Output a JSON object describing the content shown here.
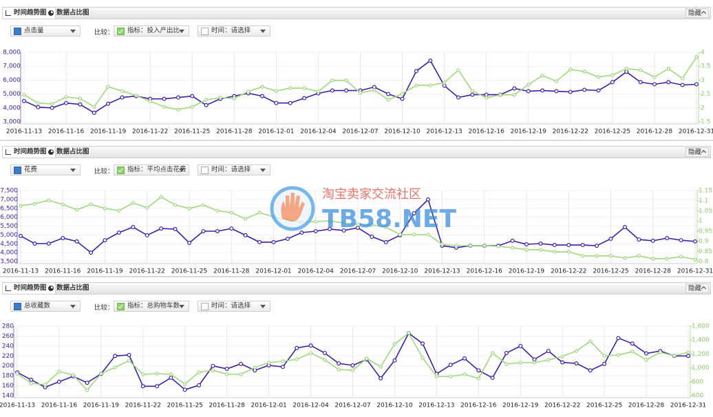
{
  "panels": [
    {
      "tabs": [
        "时间趋势图",
        "数据占比图"
      ],
      "hide": "隐藏",
      "metric": "点击量",
      "compare": "比较：",
      "compare_metric": "指标：投入产出比",
      "time_filter": "时间：请选择"
    },
    {
      "tabs": [
        "时间趋势图",
        "数据占比图"
      ],
      "hide": "隐藏",
      "metric": "花费",
      "compare": "比较：",
      "compare_metric": "指标：平均点击花费",
      "time_filter": "时间：请选择"
    },
    {
      "tabs": [
        "时间趋势图",
        "数据占比图"
      ],
      "hide": "隐藏",
      "metric": "总收藏数",
      "compare": "比较：",
      "compare_metric": "指标：总购物车数",
      "time_filter": "时间：请选择"
    }
  ],
  "watermark": {
    "text": "淘宝卖家交流社区",
    "site": "TB58.NET"
  },
  "chart_data": [
    {
      "type": "line",
      "grid": true,
      "categories": [
        "2016-11-13",
        null,
        null,
        "2016-11-16",
        null,
        null,
        "2016-11-19",
        null,
        null,
        "2016-11-22",
        null,
        null,
        "2016-11-25",
        null,
        null,
        "2016-11-28",
        null,
        null,
        "2016-12-01",
        null,
        null,
        "2016-12-04",
        null,
        null,
        "2016-12-07",
        null,
        null,
        "2016-12-10",
        null,
        null,
        "2016-12-13",
        null,
        null,
        "2016-12-16",
        null,
        null,
        "2016-12-19",
        null,
        null,
        "2016-12-22",
        null,
        null,
        "2016-12-25",
        null,
        null,
        "2016-12-28",
        null,
        null,
        "2016-12-31"
      ],
      "ylim": [
        3000,
        8000
      ],
      "yticks": [
        {
          "value": 3000,
          "label": "3,000"
        },
        {
          "value": 4000,
          "label": "4,000"
        },
        {
          "value": 5000,
          "label": "5,000"
        },
        {
          "value": 6000,
          "label": "6,000"
        },
        {
          "value": 7000,
          "label": "7,000"
        },
        {
          "value": 8000,
          "label": "8,000"
        }
      ],
      "y2lim": [
        1.5,
        4
      ],
      "y2ticks": [
        1.5,
        2,
        2.5,
        3,
        3.5,
        4
      ],
      "series": [
        {
          "color": "#3b1fa3",
          "values": [
            4500,
            4050,
            4000,
            4350,
            4250,
            3650,
            4300,
            4750,
            4850,
            4650,
            4650,
            4750,
            4850,
            4200,
            4650,
            4850,
            5050,
            4850,
            4350,
            4350,
            4700,
            5050,
            5250,
            5250,
            5250,
            5500,
            5000,
            4650,
            6650,
            7400,
            5600,
            4750,
            4950,
            4950,
            4950,
            5400,
            5200,
            5250,
            5200,
            5150,
            5300,
            5250,
            5850,
            6600,
            5850,
            5700,
            5850,
            5650,
            5700
          ]
        },
        {
          "color": "#9fd87f",
          "axis": "y2",
          "values": [
            2.47,
            2.17,
            2.14,
            2.39,
            2.34,
            2.04,
            2.76,
            2.61,
            2.44,
            2.24,
            2.04,
            1.94,
            2.04,
            2.29,
            2.37,
            2.34,
            2.59,
            2.76,
            2.61,
            2.71,
            2.71,
            2.59,
            2.99,
            2.99,
            2.54,
            2.64,
            2.29,
            2.51,
            2.81,
            2.81,
            2.91,
            3.36,
            2.61,
            2.37,
            2.47,
            2.47,
            2.84,
            3.16,
            2.96,
            3.38,
            3.31,
            3.11,
            3.18,
            3.41,
            3.36,
            3.11,
            3.41,
            3.06,
            3.83
          ]
        }
      ]
    },
    {
      "type": "line",
      "grid": true,
      "categories": [
        "2016-11-13",
        null,
        null,
        "2016-11-16",
        null,
        null,
        "2016-11-19",
        null,
        null,
        "2016-11-22",
        null,
        null,
        "2016-11-25",
        null,
        null,
        "2016-11-28",
        null,
        null,
        "2016-12-01",
        null,
        null,
        "2016-12-04",
        null,
        null,
        "2016-12-07",
        null,
        null,
        "2016-12-10",
        null,
        null,
        "2016-12-13",
        null,
        null,
        "2016-12-16",
        null,
        null,
        "2016-12-19",
        null,
        null,
        "2016-12-22",
        null,
        null,
        "2016-12-25",
        null,
        null,
        "2016-12-28",
        null,
        null,
        "2016-12-31"
      ],
      "ylim": [
        3500,
        7500
      ],
      "yticks": [
        {
          "value": 3500,
          "label": "3,500"
        },
        {
          "value": 4000,
          "label": "4,000"
        },
        {
          "value": 4500,
          "label": "4,500"
        },
        {
          "value": 5000,
          "label": "5,000"
        },
        {
          "value": 5500,
          "label": "5,500"
        },
        {
          "value": 6000,
          "label": "6,000"
        },
        {
          "value": 6500,
          "label": "6,500"
        },
        {
          "value": 7000,
          "label": "7,000"
        },
        {
          "value": 7500,
          "label": "7,500"
        }
      ],
      "y2lim": [
        0.8,
        1.15
      ],
      "y2ticks": [
        0.8,
        0.85,
        0.9,
        0.95,
        1,
        1.05,
        1.1,
        1.15
      ],
      "series": [
        {
          "color": "#3b1fa3",
          "values": [
            4940,
            4510,
            4510,
            4820,
            4630,
            4000,
            4700,
            5130,
            5440,
            4980,
            5360,
            5330,
            4550,
            5210,
            5210,
            5360,
            4980,
            4590,
            4590,
            4780,
            5130,
            5210,
            5330,
            5250,
            5400,
            4900,
            4590,
            4980,
            6220,
            7000,
            4390,
            4280,
            4390,
            4390,
            4390,
            4670,
            4470,
            4510,
            4430,
            4430,
            4430,
            4390,
            4780,
            5440,
            4740,
            4670,
            4820,
            4700,
            4630
          ]
        },
        {
          "color": "#9fd87f",
          "axis": "y2",
          "values": [
            1.075,
            1.085,
            1.102,
            1.082,
            1.055,
            1.082,
            1.062,
            1.051,
            1.089,
            1.065,
            1.119,
            1.079,
            1.062,
            1.079,
            1.051,
            1.041,
            1.011,
            1.041,
            1.021,
            1.004,
            0.994,
            0.997,
            1.0,
            0.99,
            0.983,
            0.98,
            0.97,
            0.933,
            0.933,
            0.933,
            0.885,
            0.878,
            0.878,
            0.878,
            0.875,
            0.868,
            0.858,
            0.858,
            0.848,
            0.848,
            0.828,
            0.828,
            0.828,
            0.817,
            0.828,
            0.814,
            0.814,
            0.824,
            0.81
          ]
        }
      ]
    },
    {
      "type": "line",
      "grid": true,
      "categories": [
        "2016-11-13",
        null,
        null,
        "2016-11-16",
        null,
        null,
        "2016-11-19",
        null,
        null,
        "2016-11-22",
        null,
        null,
        "2016-11-25",
        null,
        null,
        "2016-11-28",
        null,
        null,
        "2016-12-01",
        null,
        null,
        "2016-12-04",
        null,
        null,
        "2016-12-07",
        null,
        null,
        "2016-12-10",
        null,
        null,
        "2016-12-13",
        null,
        null,
        "2016-12-16",
        null,
        null,
        "2016-12-19",
        null,
        null,
        "2016-12-22",
        null,
        null,
        "2016-12-25",
        null,
        null,
        "2016-12-28",
        null,
        null,
        "2016-12-31"
      ],
      "ylim": [
        140,
        280
      ],
      "yticks": [
        140,
        160,
        180,
        200,
        220,
        240,
        260,
        280
      ],
      "y2lim": [
        600,
        1600
      ],
      "y2ticks": [
        600,
        800,
        {
          "value": 1000,
          "label": "1,000"
        },
        {
          "value": 1200,
          "label": "1,200"
        },
        {
          "value": 1400,
          "label": "1,400"
        },
        {
          "value": 1600,
          "label": "1,600"
        }
      ],
      "series": [
        {
          "color": "#3b1fa3",
          "values": [
            187,
            172,
            157,
            168,
            179,
            166,
            184,
            220,
            222,
            159,
            159,
            176,
            152,
            161,
            200,
            194,
            204,
            191,
            201,
            198,
            236,
            241,
            226,
            205,
            201,
            213,
            175,
            211,
            266,
            245,
            184,
            202,
            215,
            191,
            176,
            226,
            240,
            213,
            230,
            207,
            205,
            191,
            204,
            256,
            245,
            225,
            230,
            220,
            220
          ]
        },
        {
          "color": "#9fd87f",
          "axis": "y2",
          "values": [
            917,
            778,
            758,
            947,
            897,
            679,
            917,
            1006,
            1105,
            907,
            917,
            907,
            768,
            937,
            966,
            907,
            907,
            1006,
            1075,
            1095,
            1125,
            1214,
            1115,
            976,
            966,
            1135,
            1016,
            1343,
            1501,
            1145,
            877,
            877,
            907,
            848,
            1214,
            1056,
            1075,
            1075,
            1115,
            1164,
            1244,
            1382,
            1174,
            1184,
            1234,
            1115,
            1224,
            1174,
            1224
          ]
        }
      ]
    }
  ]
}
